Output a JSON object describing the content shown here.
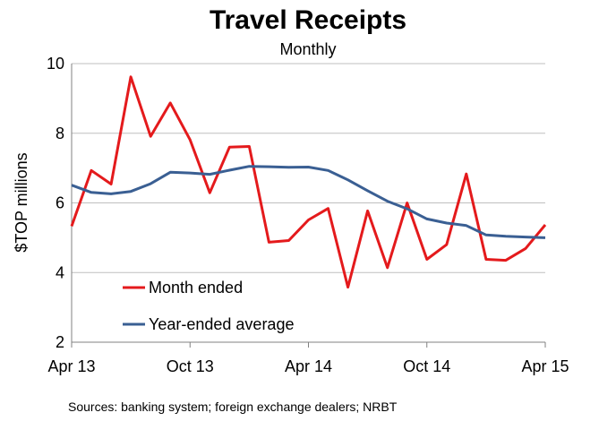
{
  "chart_data": {
    "type": "line",
    "title": "Travel Receipts",
    "subtitle": "Monthly",
    "xlabel": "",
    "ylabel": "$TOP millions",
    "ylim": [
      2,
      10
    ],
    "yticks": [
      2,
      4,
      6,
      8,
      10
    ],
    "x": [
      "Apr 13",
      "May 13",
      "Jun 13",
      "Jul 13",
      "Aug 13",
      "Sep 13",
      "Oct 13",
      "Nov 13",
      "Dec 13",
      "Jan 14",
      "Feb 14",
      "Mar 14",
      "Apr 14",
      "May 14",
      "Jun 14",
      "Jul 14",
      "Aug 14",
      "Sep 14",
      "Oct 14",
      "Nov 14",
      "Dec 14",
      "Jan 15",
      "Feb 15",
      "Mar 15",
      "Apr 15"
    ],
    "xtick_labels": [
      "Apr 13",
      "Oct 13",
      "Apr 14",
      "Oct 14",
      "Apr 15"
    ],
    "grid": "horizontal",
    "legend_position": "bottom-left",
    "series": [
      {
        "name": "Month ended",
        "color": "#e41a1c",
        "values": [
          5.33,
          6.93,
          6.54,
          9.62,
          7.91,
          8.87,
          7.81,
          6.29,
          7.6,
          7.62,
          4.87,
          4.92,
          5.51,
          5.84,
          3.58,
          5.77,
          4.14,
          6.0,
          4.38,
          4.8,
          6.83,
          4.38,
          4.35,
          4.69,
          5.37
        ]
      },
      {
        "name": "Year-ended average",
        "color": "#3a5f93",
        "values": [
          6.51,
          6.3,
          6.26,
          6.33,
          6.55,
          6.88,
          6.86,
          6.82,
          6.94,
          7.05,
          7.04,
          7.02,
          7.03,
          6.93,
          6.66,
          6.35,
          6.05,
          5.83,
          5.54,
          5.42,
          5.35,
          5.08,
          5.04,
          5.02,
          5.0
        ]
      }
    ]
  },
  "source": "Sources: banking system; foreign exchange dealers; NRBT"
}
